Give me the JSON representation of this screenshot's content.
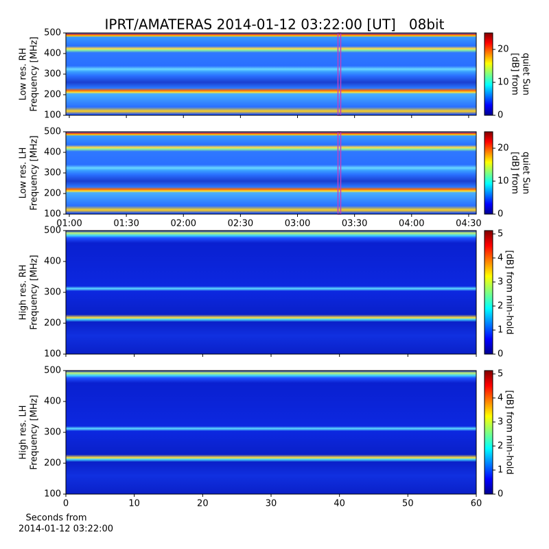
{
  "title": "IPRT/AMATERAS 2014-01-12 03:22:00 [UT]   08bit",
  "chart_data": [
    {
      "type": "heatmap",
      "ylabel": [
        "Low res. RH",
        "Frequency [MHz]"
      ],
      "xlim": [
        58.2,
        274
      ],
      "xticks": [
        60,
        90,
        120,
        150,
        180,
        210,
        240,
        270
      ],
      "show_xtick_labels": false,
      "ylim": [
        100,
        500
      ],
      "yticks": [
        100,
        200,
        300,
        400,
        500
      ],
      "marker_x": 202,
      "marker_color": "#c040c0",
      "clim": [
        0,
        25
      ],
      "cticks": [
        0,
        10,
        20
      ],
      "clabel": [
        "[dB] from",
        "quiet Sun"
      ]
    },
    {
      "type": "heatmap",
      "ylabel": [
        "Low res. LH",
        "Frequency [MHz]"
      ],
      "xlim": [
        58.2,
        274
      ],
      "xticks": [
        {
          "value": 60,
          "label": "01:00"
        },
        {
          "value": 90,
          "label": "01:30"
        },
        {
          "value": 120,
          "label": "02:00"
        },
        {
          "value": 150,
          "label": "02:30"
        },
        {
          "value": 180,
          "label": "03:00"
        },
        {
          "value": 210,
          "label": "03:30"
        },
        {
          "value": 240,
          "label": "04:00"
        },
        {
          "value": 270,
          "label": "04:30"
        }
      ],
      "show_xtick_labels": true,
      "ylim": [
        100,
        500
      ],
      "yticks": [
        100,
        200,
        300,
        400,
        500
      ],
      "marker_x": 202,
      "marker_color": "#c040c0",
      "clim": [
        0,
        25
      ],
      "cticks": [
        0,
        10,
        20
      ],
      "clabel": [
        "[dB] from",
        "quiet Sun"
      ]
    },
    {
      "type": "heatmap",
      "ylabel": [
        "High res. RH",
        "Frequency [MHz]"
      ],
      "xlim": [
        0,
        60
      ],
      "xticks": [
        0,
        10,
        20,
        30,
        40,
        50,
        60
      ],
      "show_xtick_labels": false,
      "ylim": [
        100,
        500
      ],
      "yticks": [
        100,
        200,
        300,
        400,
        500
      ],
      "clim": [
        0,
        5.14
      ],
      "cticks": [
        0,
        1,
        2,
        3,
        4,
        5
      ],
      "clabel": [
        "[dB] from min-hold"
      ]
    },
    {
      "type": "heatmap",
      "ylabel": [
        "High res. LH",
        "Frequency [MHz]"
      ],
      "xlim": [
        0,
        60
      ],
      "xticks": [
        0,
        10,
        20,
        30,
        40,
        50,
        60
      ],
      "show_xtick_labels": true,
      "xlabel": [
        "Seconds from",
        "2014-01-12 03:22:00"
      ],
      "ylim": [
        100,
        500
      ],
      "yticks": [
        100,
        200,
        300,
        400,
        500
      ],
      "clim": [
        0,
        5.14
      ],
      "cticks": [
        0,
        1,
        2,
        3,
        4,
        5
      ],
      "clabel": [
        "[dB] from min-hold"
      ]
    }
  ]
}
